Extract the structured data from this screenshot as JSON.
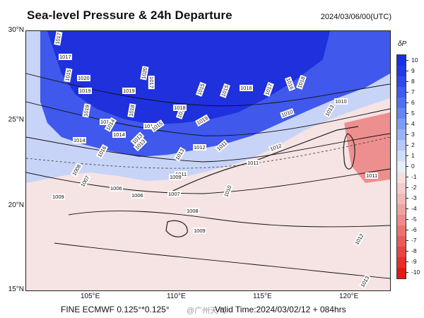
{
  "header": {
    "title": "Sea-level Pressure & 24h Departure",
    "datetime": "2024/03/06/00(UTC)"
  },
  "axes": {
    "lat_labels": [
      "30°N",
      "25°N",
      "20°N",
      "15°N"
    ],
    "lon_labels": [
      "105°E",
      "110°E",
      "115°E",
      "120°E"
    ]
  },
  "footer": {
    "model": "FINE ECMWF 0.125°*0.125°",
    "valid_time": "Valid Time:2024/03/02/12 + 084hrs",
    "watermark": "@广州天气"
  },
  "colorbar": {
    "title": "δP",
    "labels": [
      "10",
      "9",
      "8",
      "7",
      "6",
      "5",
      "4",
      "3",
      "2",
      "1",
      "0",
      "-1",
      "-2",
      "-3",
      "-4",
      "-5",
      "-6",
      "-7",
      "-8",
      "-9",
      "-10"
    ],
    "colors": [
      "#1a2ee6",
      "#2238ea",
      "#3048ee",
      "#3f5af0",
      "#5070f2",
      "#6686f4",
      "#7e9cf6",
      "#98b2f8",
      "#b4c8fa",
      "#d0dcfb",
      "#e8edfc",
      "#f6dede",
      "#f4cccc",
      "#f2b8b8",
      "#f0a2a2",
      "#ee8a8a",
      "#ec7272",
      "#ea5a5a",
      "#e84444",
      "#e62e2e",
      "#e61818"
    ]
  },
  "isobar_labels": [
    "1017",
    "1017",
    "1015",
    "1020",
    "1019",
    "1019",
    "1020",
    "1019",
    "1018",
    "1018",
    "1017",
    "1016",
    "1015",
    "1015",
    "1016",
    "1017",
    "1016",
    "1018",
    "1019",
    "1018",
    "1013",
    "1012",
    "1014",
    "1014",
    "1015",
    "1013",
    "1016",
    "1014",
    "1013",
    "1012",
    "1011",
    "1011",
    "1012",
    "1011",
    "1010",
    "1009",
    "1008",
    "1007",
    "1006",
    "1006",
    "1007",
    "1008",
    "1009",
    "1010",
    "1011",
    "1010",
    "1012",
    "1013",
    "1009",
    "1013"
  ]
}
